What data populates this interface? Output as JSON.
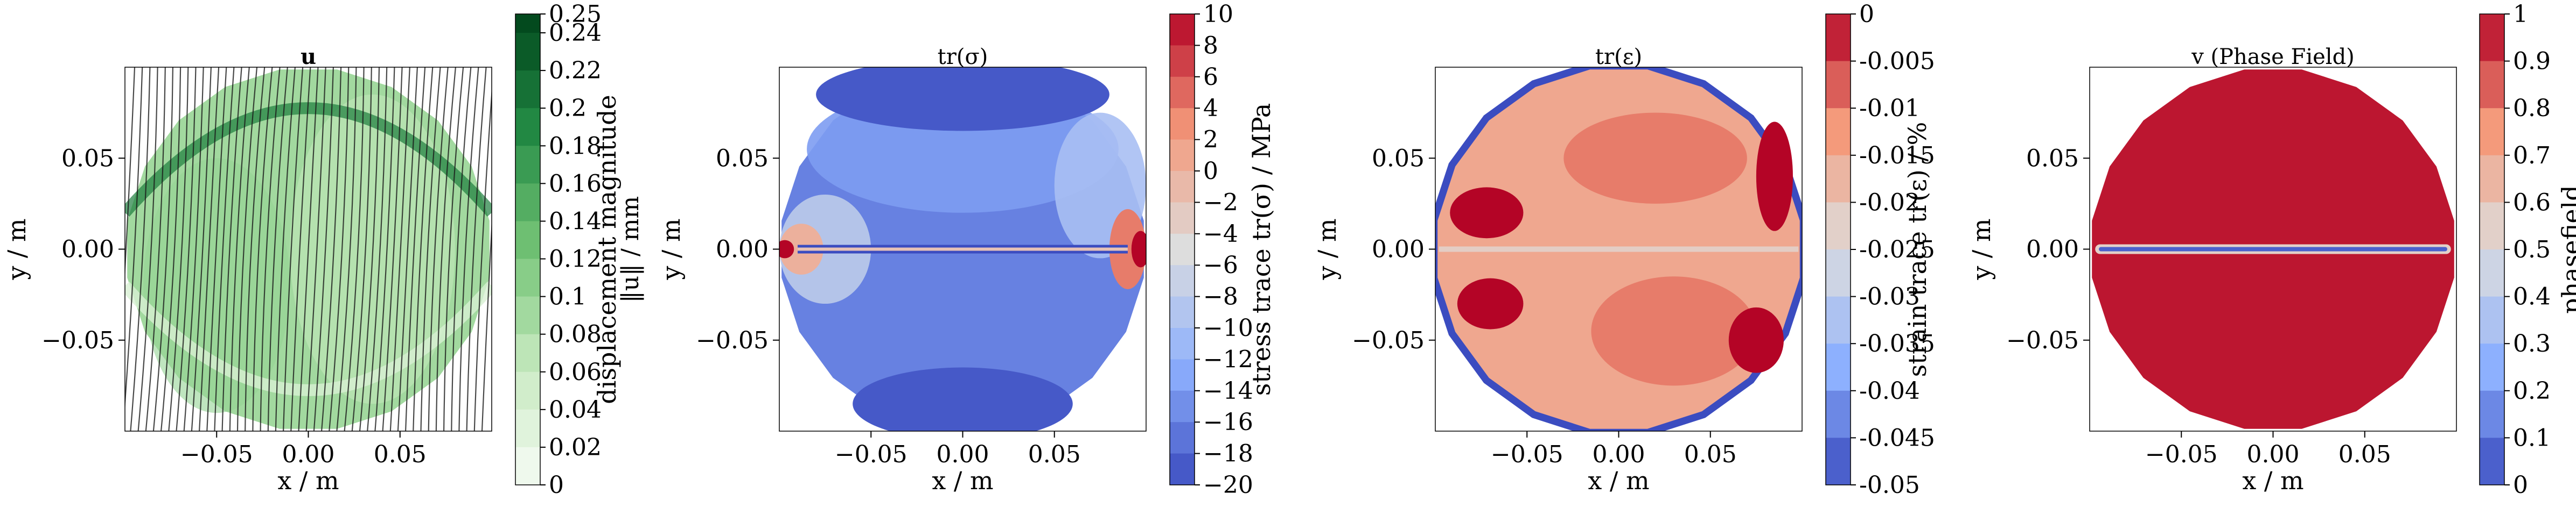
{
  "chart_data": [
    {
      "type": "heatmap",
      "title": "u",
      "xlabel": "x / m",
      "ylabel": "y / m",
      "xticks": [
        "−0.05",
        "0.00",
        "0.05"
      ],
      "yticks": [
        "0.05",
        "0.00",
        "−0.05"
      ],
      "xlim": [
        -0.1,
        0.1
      ],
      "ylim": [
        -0.1,
        0.1
      ],
      "colorbar": {
        "label": "displacement magnitude",
        "sublabel": "‖u‖ / mm",
        "range": [
          0,
          0.25
        ],
        "ticks": [
          "0.25",
          "0.24",
          "0.22",
          "0.2",
          "0.18",
          "0.16",
          "0.14",
          "0.12",
          "0.1",
          "0.08",
          "0.06",
          "0.04",
          "0.02",
          "0"
        ],
        "colormap": "Greens"
      },
      "overlay": "streamlines"
    },
    {
      "type": "heatmap",
      "title": "tr(σ)",
      "xlabel": "x / m",
      "ylabel": "y / m",
      "xticks": [
        "−0.05",
        "0.00",
        "0.05"
      ],
      "yticks": [
        "0.05",
        "0.00",
        "−0.05"
      ],
      "xlim": [
        -0.1,
        0.1
      ],
      "ylim": [
        -0.1,
        0.1
      ],
      "colorbar": {
        "label": "stress trace tr(σ) / MPa",
        "range": [
          -20,
          10
        ],
        "ticks": [
          "10",
          "8",
          "6",
          "4",
          "2",
          "0",
          "−2",
          "−4",
          "−6",
          "−8",
          "−10",
          "−12",
          "−14",
          "−16",
          "−18",
          "−20"
        ],
        "colormap": "coolwarm"
      }
    },
    {
      "type": "heatmap",
      "title": "tr(ε)",
      "xlabel": "x / m",
      "ylabel": "y / m",
      "xticks": [
        "−0.05",
        "0.00",
        "0.05"
      ],
      "yticks": [
        "0.05",
        "0.00",
        "−0.05"
      ],
      "xlim": [
        -0.1,
        0.1
      ],
      "ylim": [
        -0.1,
        0.1
      ],
      "colorbar": {
        "label": "strain trace tr(ε) / %",
        "range": [
          -0.05,
          0
        ],
        "ticks": [
          "0",
          "-0.005",
          "-0.01",
          "-0.015",
          "-0.02",
          "-0.025",
          "-0.03",
          "-0.035",
          "-0.04",
          "-0.045",
          "-0.05"
        ],
        "colormap": "coolwarm"
      }
    },
    {
      "type": "heatmap",
      "title": "v (Phase Field)",
      "xlabel": "x / m",
      "ylabel": "y / m",
      "xticks": [
        "−0.05",
        "0.00",
        "0.05"
      ],
      "yticks": [
        "0.05",
        "0.00",
        "−0.05"
      ],
      "xlim": [
        -0.1,
        0.1
      ],
      "ylim": [
        -0.1,
        0.1
      ],
      "colorbar": {
        "label": "phasefield",
        "range": [
          0,
          1
        ],
        "ticks": [
          "1",
          "0.9",
          "0.8",
          "0.7",
          "0.6",
          "0.5",
          "0.4",
          "0.3",
          "0.2",
          "0.1",
          "0"
        ],
        "colormap": "coolwarm"
      }
    }
  ]
}
